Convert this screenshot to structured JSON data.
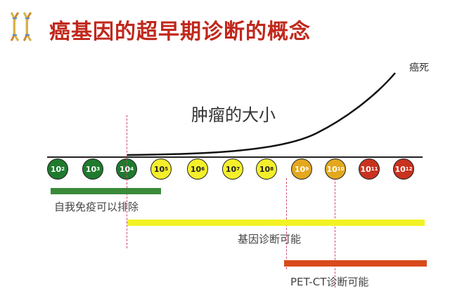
{
  "title": "癌基因的超早期诊断的概念",
  "labels": {
    "tumor_size": "肿瘤的大小",
    "cancer_death": "癌死",
    "immune_clearance": "自我免疫可以排除",
    "gene_diagnosis": "基因诊断可能",
    "pet_ct": "PET-CT诊断可能"
  },
  "scale": [
    {
      "base": "10",
      "exp": "2",
      "color": "#1f7a2e",
      "text_color": "#ffffff"
    },
    {
      "base": "10",
      "exp": "3",
      "color": "#1f7a2e",
      "text_color": "#ffffff"
    },
    {
      "base": "10",
      "exp": "4",
      "color": "#1f7a2e",
      "text_color": "#ffffff"
    },
    {
      "base": "10",
      "exp": "5",
      "color": "#f4ef2a",
      "text_color": "#222222"
    },
    {
      "base": "10",
      "exp": "6",
      "color": "#f4ef2a",
      "text_color": "#222222"
    },
    {
      "base": "10",
      "exp": "7",
      "color": "#f4ef2a",
      "text_color": "#222222"
    },
    {
      "base": "10",
      "exp": "8",
      "color": "#f4ef2a",
      "text_color": "#222222"
    },
    {
      "base": "10",
      "exp": "9",
      "color": "#e3a81e",
      "text_color": "#ffffff"
    },
    {
      "base": "10",
      "exp": "10",
      "color": "#e3a81e",
      "text_color": "#ffffff"
    },
    {
      "base": "10",
      "exp": "11",
      "color": "#c8321e",
      "text_color": "#ffffff"
    },
    {
      "base": "10",
      "exp": "12",
      "color": "#c8321e",
      "text_color": "#ffffff"
    }
  ],
  "colors": {
    "title": "#c0281c",
    "immune_bar": "#3a8a3a",
    "gene_bar": "#f2f224",
    "pet_bar": "#d94a1c",
    "dashed_line": "#d04a6a"
  }
}
